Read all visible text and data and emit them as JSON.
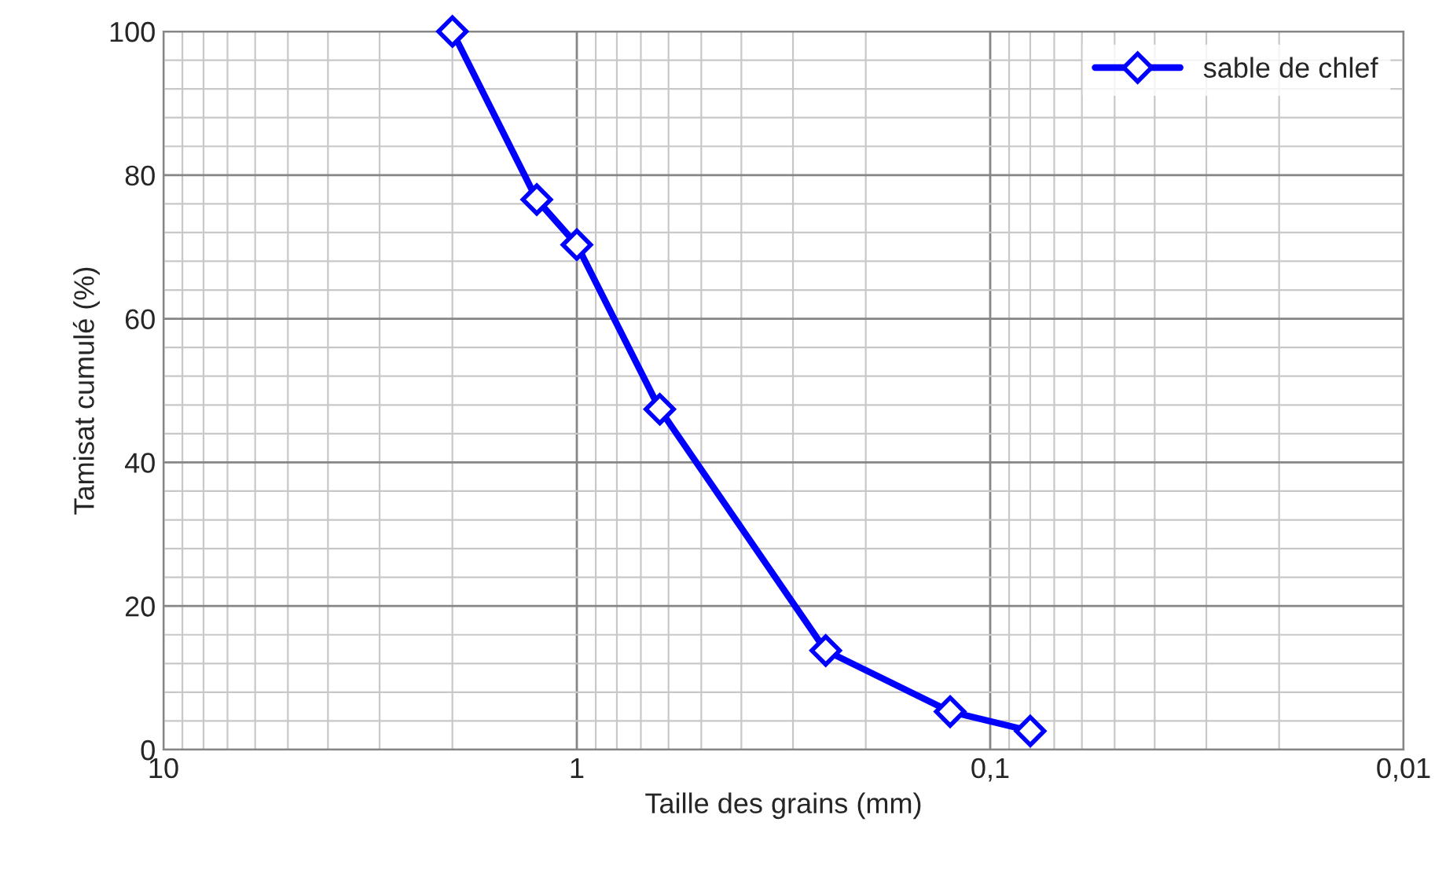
{
  "chart_data": {
    "type": "line",
    "xlabel": "Taille des grains (mm)",
    "ylabel": "Tamisat cumulé (%)",
    "x": [
      2,
      1.25,
      1,
      0.63,
      0.25,
      0.125,
      0.08
    ],
    "series": [
      {
        "name": "sable de chlef",
        "color": "#0000ff",
        "values": [
          100,
          76.6,
          70.3,
          47.4,
          13.8,
          5.3,
          2.6
        ]
      }
    ],
    "log": "x",
    "xlim": [
      10,
      0.01
    ],
    "xticks": [
      10,
      1,
      {
        "value": 0.1,
        "label": "0,1"
      },
      {
        "value": 0.01,
        "label": "0,01"
      }
    ],
    "ylim": [
      0,
      100
    ],
    "yticks": [
      0,
      20,
      40,
      60,
      80,
      100
    ],
    "grid": true,
    "legend": "top right",
    "marker": "diamond",
    "line_style": "solid"
  }
}
